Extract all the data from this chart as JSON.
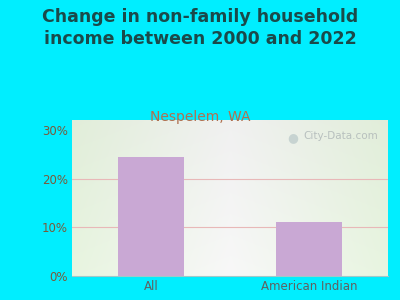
{
  "title": "Change in non-family household\nincome between 2000 and 2022",
  "subtitle": "Nespelem, WA",
  "categories": [
    "All",
    "American Indian"
  ],
  "values": [
    24.5,
    11.0
  ],
  "bar_color": "#c9a8d4",
  "title_fontsize": 12.5,
  "subtitle_fontsize": 10,
  "subtitle_color": "#b07050",
  "title_color": "#1a4a4a",
  "tick_label_color": "#7a5a3a",
  "xtick_label_color": "#606060",
  "background_outer": "#00eeff",
  "ylim": [
    0,
    32
  ],
  "yticks": [
    0,
    10,
    20,
    30
  ],
  "ytick_labels": [
    "0%",
    "10%",
    "20%",
    "30%"
  ],
  "watermark": "City-Data.com",
  "grid_color": "#e8b8b8",
  "plot_bg_left": "#e8f5e0",
  "plot_bg_right": "#f8fff8",
  "plot_bg_center": "#f8f8f8"
}
